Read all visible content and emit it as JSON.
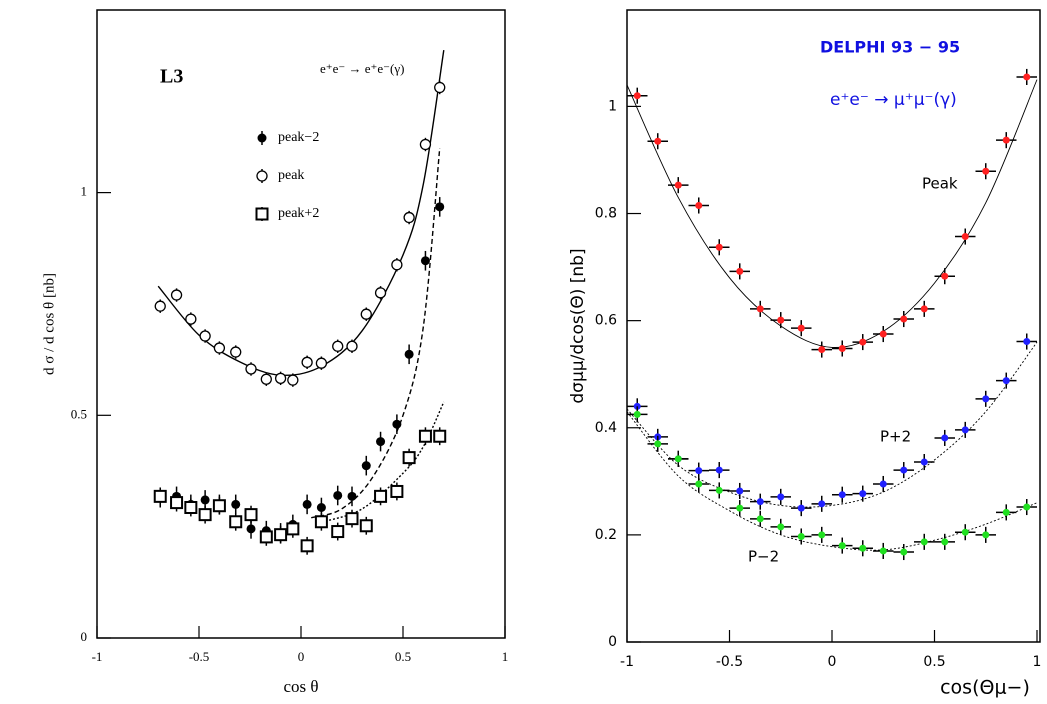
{
  "chart_data": [
    {
      "type": "scatter",
      "ylabel": "d σ / d cos θ [nb]",
      "xlabel": "cos θ",
      "annotations": [
        "L3",
        "e⁺e⁻ → e⁺e⁻(γ)"
      ],
      "xlim": [
        -1,
        1
      ],
      "ylim": [
        0,
        1.41
      ],
      "xticks": [
        -1,
        -0.5,
        0,
        0.5,
        1
      ],
      "yticks": [
        0,
        0.5,
        1
      ],
      "x": [
        -0.69,
        -0.61,
        -0.54,
        -0.47,
        -0.4,
        -0.32,
        -0.245,
        -0.17,
        -0.1,
        -0.04,
        0.03,
        0.1,
        0.18,
        0.25,
        0.32,
        0.39,
        0.47,
        0.53,
        0.61,
        0.68
      ],
      "legend": "upper left",
      "series": [
        {
          "name": "peak−2",
          "marker": "filled-circle",
          "color": "#000000",
          "yerr": 0.022,
          "values": [
            0.315,
            0.318,
            0.3,
            0.31,
            0.3,
            0.3,
            0.245,
            0.241,
            0.236,
            0.255,
            0.3,
            0.293,
            0.32,
            0.318,
            0.387,
            0.441,
            0.48,
            0.637,
            0.847,
            0.968
          ]
        },
        {
          "name": "peak",
          "marker": "open-circle",
          "color": "#000000",
          "yerr": 0.015,
          "values": [
            0.745,
            0.77,
            0.716,
            0.678,
            0.651,
            0.642,
            0.604,
            0.581,
            0.583,
            0.579,
            0.619,
            0.617,
            0.655,
            0.655,
            0.727,
            0.775,
            0.838,
            0.944,
            1.108,
            1.236
          ]
        },
        {
          "name": "peak+2",
          "marker": "open-square",
          "color": "#000000",
          "yerr": 0.02,
          "values": [
            0.318,
            0.304,
            0.293,
            0.277,
            0.297,
            0.261,
            0.277,
            0.227,
            0.232,
            0.245,
            0.207,
            0.261,
            0.239,
            0.268,
            0.252,
            0.318,
            0.329,
            0.405,
            0.453,
            0.453
          ]
        }
      ],
      "fits": [
        {
          "style": "solid",
          "x": [
            -0.7,
            -0.5,
            -0.3,
            -0.1,
            0.1,
            0.3,
            0.5,
            0.6,
            0.7
          ],
          "y": [
            0.79,
            0.68,
            0.62,
            0.59,
            0.61,
            0.69,
            0.86,
            1.02,
            1.32
          ]
        },
        {
          "style": "dashed",
          "x": [
            0.05,
            0.2,
            0.35,
            0.5,
            0.6,
            0.68
          ],
          "y": [
            0.27,
            0.29,
            0.36,
            0.5,
            0.7,
            1.1
          ]
        },
        {
          "style": "dotted",
          "x": [
            0.1,
            0.3,
            0.5,
            0.6,
            0.7
          ],
          "y": [
            0.26,
            0.29,
            0.37,
            0.43,
            0.53
          ]
        }
      ]
    },
    {
      "type": "scatter",
      "ylabel": "dσμμ/dcos(Θ) [nb]",
      "xlabel": "cos(Θμ−)",
      "annotations": [
        "DELPHI 93 − 95",
        "e⁺e⁻ → μ⁺μ⁻(γ)",
        "Peak",
        "P+2",
        "P−2"
      ],
      "xlim": [
        -1,
        1
      ],
      "ylim": [
        0,
        1.18
      ],
      "xticks": [
        -1,
        -0.5,
        0,
        0.5,
        1
      ],
      "yticks": [
        0,
        0.2,
        0.4,
        0.6,
        0.8,
        1
      ],
      "x": [
        -0.95,
        -0.85,
        -0.75,
        -0.65,
        -0.55,
        -0.45,
        -0.35,
        -0.25,
        -0.15,
        -0.05,
        0.05,
        0.15,
        0.25,
        0.35,
        0.45,
        0.55,
        0.65,
        0.75,
        0.85,
        0.95
      ],
      "series": [
        {
          "marker": "dot",
          "color": "#ff2020",
          "yerr": 0.015,
          "xerr": 0.05,
          "values": [
            1.02,
            0.935,
            0.853,
            0.815,
            0.737,
            0.692,
            0.622,
            0.601,
            0.586,
            0.546,
            0.548,
            0.56,
            0.575,
            0.603,
            0.622,
            0.683,
            0.757,
            0.879,
            0.937,
            1.055
          ]
        },
        {
          "marker": "dot",
          "color": "#2020ff",
          "yerr": 0.015,
          "xerr": 0.05,
          "values": [
            0.44,
            0.383,
            0.342,
            0.32,
            0.321,
            0.282,
            0.262,
            0.271,
            0.25,
            0.258,
            0.275,
            0.277,
            0.295,
            0.321,
            0.336,
            0.381,
            0.396,
            0.454,
            0.488,
            0.561
          ]
        },
        {
          "marker": "dot",
          "color": "#20e020",
          "yerr": 0.015,
          "xerr": 0.05,
          "values": [
            0.425,
            0.37,
            0.342,
            0.295,
            0.283,
            0.25,
            0.23,
            0.215,
            0.197,
            0.2,
            0.18,
            0.175,
            0.17,
            0.168,
            0.187,
            0.187,
            0.205,
            0.2,
            0.242,
            0.252
          ]
        }
      ],
      "fits": [
        {
          "style": "solid",
          "x": [
            -1,
            -0.75,
            -0.5,
            -0.25,
            0,
            0.25,
            0.5,
            0.75,
            1
          ],
          "y": [
            1.04,
            0.83,
            0.68,
            0.59,
            0.55,
            0.58,
            0.67,
            0.82,
            1.05
          ]
        },
        {
          "style": "dotted",
          "x": [
            -1,
            -0.75,
            -0.5,
            -0.25,
            0,
            0.25,
            0.5,
            0.75,
            1
          ],
          "y": [
            0.435,
            0.33,
            0.28,
            0.255,
            0.255,
            0.28,
            0.34,
            0.43,
            0.56
          ]
        },
        {
          "style": "dotted",
          "x": [
            -1,
            -0.75,
            -0.5,
            -0.25,
            0,
            0.25,
            0.5,
            0.75,
            1
          ],
          "y": [
            0.43,
            0.31,
            0.245,
            0.2,
            0.178,
            0.172,
            0.19,
            0.22,
            0.26
          ]
        }
      ]
    }
  ]
}
